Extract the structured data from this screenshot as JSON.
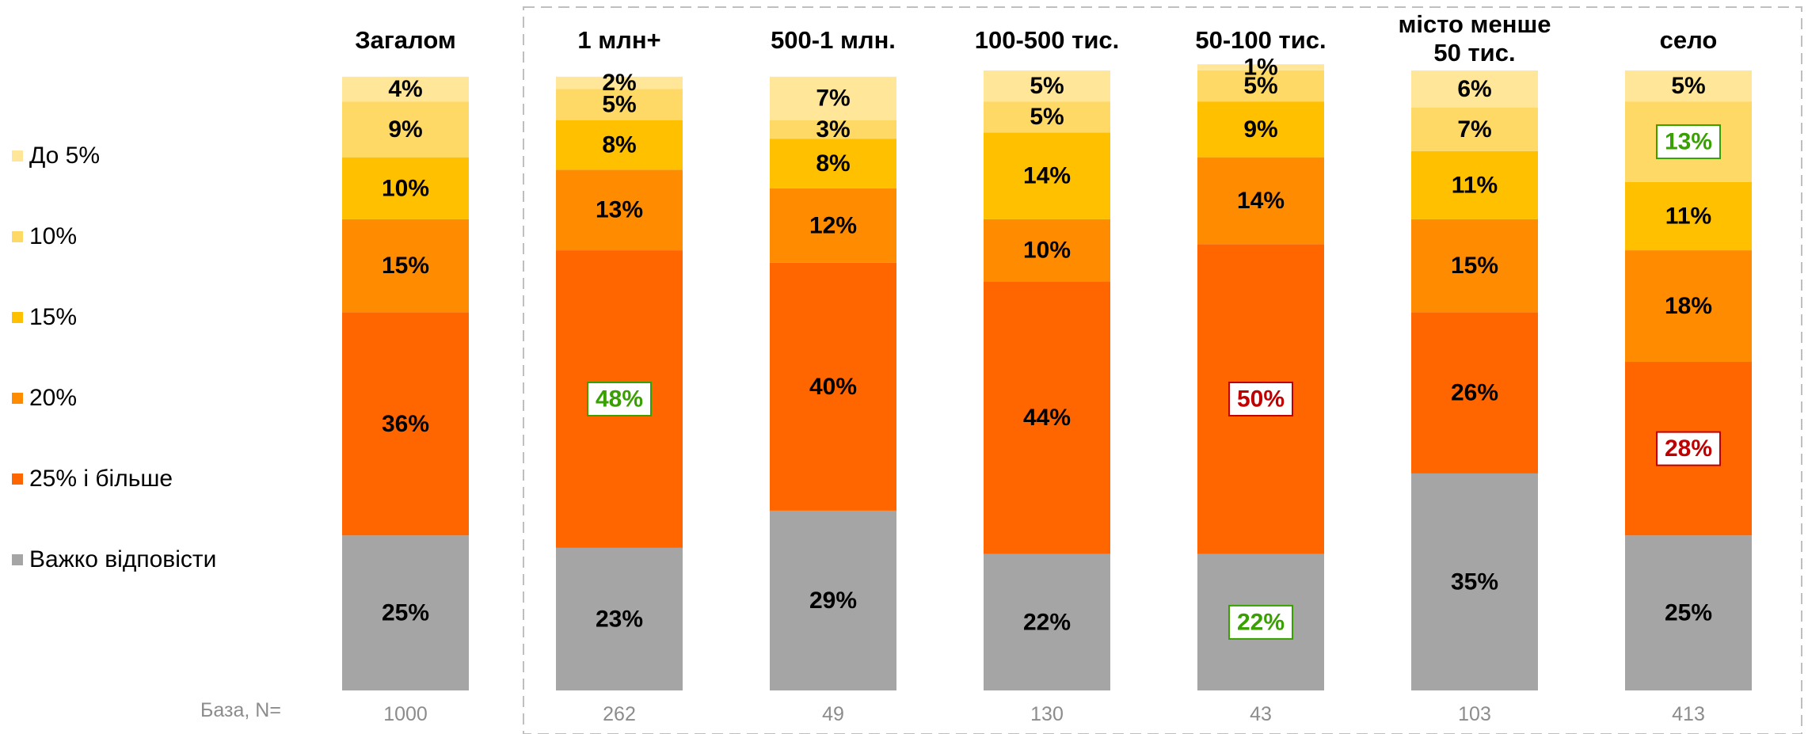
{
  "legend": [
    {
      "label": "До 5%",
      "color": "#FFE699"
    },
    {
      "label": "10%",
      "color": "#FFD966"
    },
    {
      "label": "15%",
      "color": "#FFC000"
    },
    {
      "label": "20%",
      "color": "#FF8C00"
    },
    {
      "label": "25% і більше",
      "color": "#FF6600"
    },
    {
      "label": "Важко відповісти",
      "color": "#A5A5A5"
    }
  ],
  "base_label": "База, N=",
  "chart_data": {
    "type": "bar",
    "stacked": true,
    "percent_scale": 100,
    "categories": [
      [
        "Загалом"
      ],
      [
        "1 млн+"
      ],
      [
        "500-1 млн."
      ],
      [
        "100-500 тис."
      ],
      [
        "50-100 тис."
      ],
      [
        "місто менше",
        "50 тис."
      ],
      [
        "село"
      ]
    ],
    "base_n": [
      "1000",
      "262",
      "49",
      "130",
      "43",
      "103",
      "413"
    ],
    "series": [
      {
        "name": "Важко відповісти",
        "color": "#A5A5A5",
        "values": [
          25,
          23,
          29,
          22,
          22,
          35,
          25
        ]
      },
      {
        "name": "25% і більше",
        "color": "#FF6600",
        "values": [
          36,
          48,
          40,
          44,
          50,
          26,
          28
        ]
      },
      {
        "name": "20%",
        "color": "#FF8C00",
        "values": [
          15,
          13,
          12,
          10,
          14,
          15,
          18
        ]
      },
      {
        "name": "15%",
        "color": "#FFC000",
        "values": [
          10,
          8,
          8,
          14,
          9,
          11,
          11
        ]
      },
      {
        "name": "10%",
        "color": "#FFD966",
        "values": [
          9,
          5,
          3,
          5,
          5,
          7,
          13
        ]
      },
      {
        "name": "До 5%",
        "color": "#FFE699",
        "values": [
          4,
          2,
          7,
          5,
          1,
          6,
          5
        ]
      }
    ],
    "highlights": [
      {
        "category": 1,
        "series": "25% і більше",
        "direction": "higher",
        "color": "#38A000"
      },
      {
        "category": 4,
        "series": "Важко відповісти",
        "direction": "higher",
        "color": "#38A000"
      },
      {
        "category": 4,
        "series": "25% і більше",
        "direction": "lower",
        "color": "#C00000"
      },
      {
        "category": 6,
        "series": "10%",
        "direction": "higher",
        "color": "#38A000"
      },
      {
        "category": 6,
        "series": "25% і більше",
        "direction": "lower",
        "color": "#C00000"
      }
    ],
    "highlight_fix": true,
    "grid": false,
    "legend_position": "left"
  }
}
